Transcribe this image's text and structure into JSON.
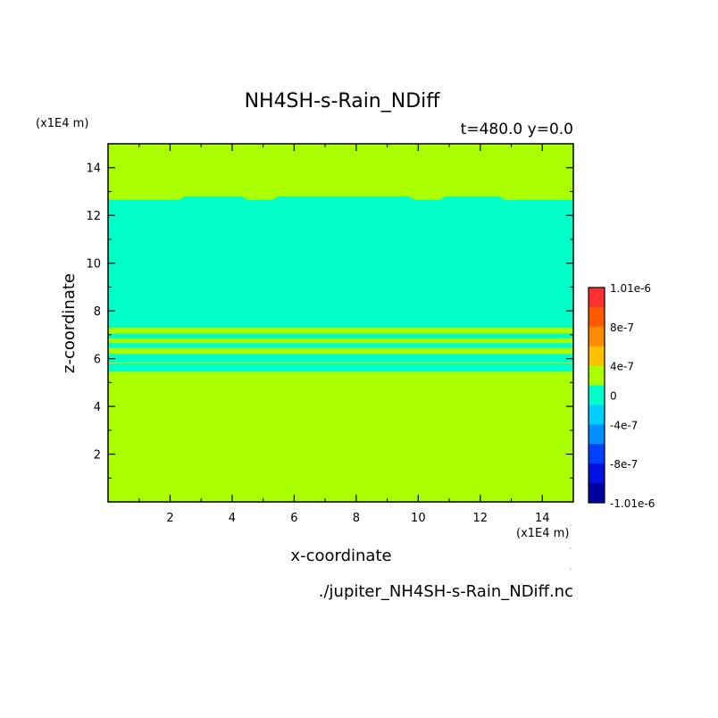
{
  "chart_data": {
    "type": "heatmap",
    "title": "NH4SH-s-Rain_NDiff",
    "subtitle": "t=480.0 y=0.0",
    "xlabel": "x-coordinate",
    "ylabel": "z-coordinate",
    "x_unit": "(x1E4 m)",
    "y_unit": "(x1E4 m)",
    "source_file": "./jupiter_NH4SH-s-Rain_NDiff.nc",
    "xlim": [
      0,
      15
    ],
    "ylim": [
      0,
      15
    ],
    "x_ticks": [
      2,
      4,
      6,
      8,
      10,
      12,
      14
    ],
    "y_ticks": [
      2,
      4,
      6,
      8,
      10,
      12,
      14
    ],
    "x_tick_labels": [
      "2",
      "4",
      "6",
      "8",
      "10",
      "12",
      "14"
    ],
    "y_tick_labels": [
      "2",
      "4",
      "6",
      "8",
      "10",
      "12",
      "14"
    ],
    "background_color": "#aaff00",
    "regions": [
      {
        "name": "upper-negative-layer",
        "color": "#00ffc8",
        "z_bottom": 7.3,
        "top_profile": [
          [
            0,
            12.65
          ],
          [
            2.3,
            12.65
          ],
          [
            2.5,
            12.8
          ],
          [
            4.3,
            12.8
          ],
          [
            4.5,
            12.65
          ],
          [
            5.3,
            12.65
          ],
          [
            5.5,
            12.8
          ],
          [
            9.7,
            12.8
          ],
          [
            9.9,
            12.65
          ],
          [
            10.7,
            12.65
          ],
          [
            10.9,
            12.8
          ],
          [
            12.6,
            12.8
          ],
          [
            12.8,
            12.65
          ],
          [
            15,
            12.65
          ]
        ]
      },
      {
        "name": "thin-band-1",
        "color": "#00ffc8",
        "z_bottom": 6.85,
        "z_top": 7.05
      },
      {
        "name": "thin-band-2",
        "color": "#00ffc8",
        "z_bottom": 6.45,
        "z_top": 6.65
      },
      {
        "name": "thin-band-3",
        "color": "#00ffc8",
        "z_bottom": 5.85,
        "z_top": 6.2
      },
      {
        "name": "lower-negative-layer",
        "color": "#00ffc8",
        "z_bottom": 5.45,
        "z_top": 5.8
      }
    ],
    "colorbar": {
      "labels": [
        "1.01e-6",
        "8e-7",
        "4e-7",
        "0",
        "-4e-7",
        "-8e-7",
        "-1.01e-6"
      ],
      "colors": [
        "#ff3030",
        "#ff5a00",
        "#ff8c00",
        "#ffc000",
        "#aaff00",
        "#00ffc8",
        "#00d0ff",
        "#0090ff",
        "#0040ff",
        "#0010e0",
        "#0000a0"
      ]
    }
  }
}
